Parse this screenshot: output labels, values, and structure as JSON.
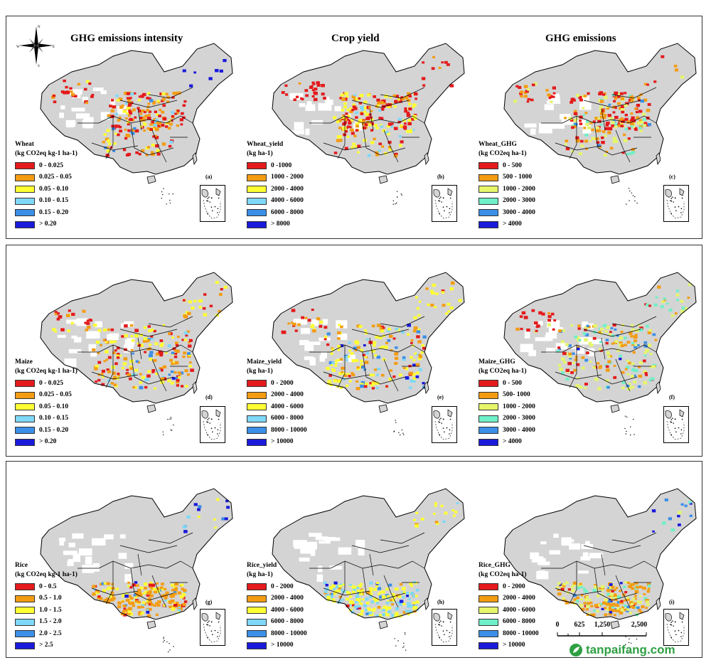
{
  "column_titles": [
    "GHG emissions intensity",
    "Crop yield",
    "GHG emissions"
  ],
  "compass": {
    "north": "N",
    "east": "E",
    "south": "S",
    "west": "W"
  },
  "rows": [
    {
      "crop": "Wheat",
      "panels": [
        {
          "letter": "(a)",
          "legend_title": "Wheat",
          "legend_unit": "(kg CO2eq kg-1 ha-1)",
          "classes": [
            {
              "label": "0 - 0.025",
              "color": "#e41a1c"
            },
            {
              "label": "0.025 - 0.05",
              "color": "#f39c12"
            },
            {
              "label": "0.05 - 0.10",
              "color": "#ffff33"
            },
            {
              "label": "0.10 - 0.15",
              "color": "#7fd8f7"
            },
            {
              "label": "0.15 - 0.20",
              "color": "#3c8fe6"
            },
            {
              "label": "> 0.20",
              "color": "#1a1adb"
            }
          ]
        },
        {
          "letter": "(b)",
          "legend_title": "Wheat_yield",
          "legend_unit": "(kg ha-1)",
          "classes": [
            {
              "label": "0 -1000",
              "color": "#e41a1c"
            },
            {
              "label": "1000 - 2000",
              "color": "#f39c12"
            },
            {
              "label": "2000 - 4000",
              "color": "#ffff33"
            },
            {
              "label": "4000 - 6000",
              "color": "#7fd8f7"
            },
            {
              "label": "6000 - 8000",
              "color": "#3c8fe6"
            },
            {
              "label": "> 8000",
              "color": "#1a1adb"
            }
          ]
        },
        {
          "letter": "(c)",
          "legend_title": "Wheat_GHG",
          "legend_unit": "(kg CO2eq ha-1)",
          "classes": [
            {
              "label": "0 - 500",
              "color": "#e41a1c"
            },
            {
              "label": "500 - 1000",
              "color": "#f39c12"
            },
            {
              "label": "1000 - 2000",
              "color": "#e6f56a"
            },
            {
              "label": "2000 - 3000",
              "color": "#6ff0c8"
            },
            {
              "label": "3000 - 4000",
              "color": "#3c8fe6"
            },
            {
              "label": "> 4000",
              "color": "#1a1adb"
            }
          ]
        }
      ]
    },
    {
      "crop": "Maize",
      "panels": [
        {
          "letter": "(d)",
          "legend_title": "Maize",
          "legend_unit": "(kg CO2eq kg-1 ha-1)",
          "classes": [
            {
              "label": "0 - 0.025",
              "color": "#e41a1c"
            },
            {
              "label": "0.025 - 0.05",
              "color": "#f39c12"
            },
            {
              "label": "0.05 - 0.10",
              "color": "#ffff33"
            },
            {
              "label": "0.10 - 0.15",
              "color": "#7fd8f7"
            },
            {
              "label": "0.15 - 0.20",
              "color": "#3c8fe6"
            },
            {
              "label": "> 0.20",
              "color": "#1a1adb"
            }
          ]
        },
        {
          "letter": "(e)",
          "legend_title": "Maize_yield",
          "legend_unit": "(kg ha-1)",
          "classes": [
            {
              "label": "0 - 2000",
              "color": "#e41a1c"
            },
            {
              "label": "2000 - 4000",
              "color": "#f39c12"
            },
            {
              "label": "4000 - 6000",
              "color": "#ffff33"
            },
            {
              "label": "6000 - 8000",
              "color": "#7fd8f7"
            },
            {
              "label": "8000 - 10000",
              "color": "#3c8fe6"
            },
            {
              "label": "> 10000",
              "color": "#1a1adb"
            }
          ]
        },
        {
          "letter": "(f)",
          "legend_title": "Maize_GHG",
          "legend_unit": "(kg CO2eq ha-1)",
          "classes": [
            {
              "label": "0 - 500",
              "color": "#e41a1c"
            },
            {
              "label": "500- 1000",
              "color": "#f39c12"
            },
            {
              "label": "1000 - 2000",
              "color": "#e6f56a"
            },
            {
              "label": "2000 - 3000",
              "color": "#6ff0c8"
            },
            {
              "label": "3000 - 4000",
              "color": "#3c8fe6"
            },
            {
              "label": "> 4000",
              "color": "#1a1adb"
            }
          ]
        }
      ]
    },
    {
      "crop": "Rice",
      "panels": [
        {
          "letter": "(g)",
          "legend_title": "Rice",
          "legend_unit": "(kg CO2eq kg-1 ha-1)",
          "classes": [
            {
              "label": "0 - 0.5",
              "color": "#e41a1c"
            },
            {
              "label": "0.5 - 1.0",
              "color": "#f39c12"
            },
            {
              "label": "1.0 - 1.5",
              "color": "#ffff33"
            },
            {
              "label": "1.5 - 2.0",
              "color": "#7fd8f7"
            },
            {
              "label": "2.0 - 2.5",
              "color": "#3c8fe6"
            },
            {
              "label": "> 2.5",
              "color": "#1a1adb"
            }
          ]
        },
        {
          "letter": "(h)",
          "legend_title": "Rice_yield",
          "legend_unit": "(kg ha-1)",
          "classes": [
            {
              "label": "0 - 2000",
              "color": "#e41a1c"
            },
            {
              "label": "2000 - 4000",
              "color": "#f39c12"
            },
            {
              "label": "4000 - 6000",
              "color": "#ffff33"
            },
            {
              "label": "6000 - 8000",
              "color": "#7fd8f7"
            },
            {
              "label": "8000 - 10000",
              "color": "#3c8fe6"
            },
            {
              "label": "> 10000",
              "color": "#1a1adb"
            }
          ]
        },
        {
          "letter": "(i)",
          "legend_title": "Rice_GHG",
          "legend_unit": "(kg CO2eq ha-1)",
          "classes": [
            {
              "label": "0 - 2000",
              "color": "#e41a1c"
            },
            {
              "label": "2000 - 4000",
              "color": "#f39c12"
            },
            {
              "label": "4000 - 6000",
              "color": "#e6f56a"
            },
            {
              "label": "6000 - 8000",
              "color": "#6ff0c8"
            },
            {
              "label": "8000 - 10000",
              "color": "#3c8fe6"
            },
            {
              "label": "> 10000",
              "color": "#1a1adb"
            }
          ]
        }
      ]
    }
  ],
  "scale_bar": {
    "ticks": [
      "0",
      "625",
      "1,250",
      "2,500"
    ]
  },
  "watermark": "tanpaifang.com",
  "colors": {
    "land": "#d4d4d4",
    "border": "#000000",
    "non_crop": "#ffffff"
  }
}
